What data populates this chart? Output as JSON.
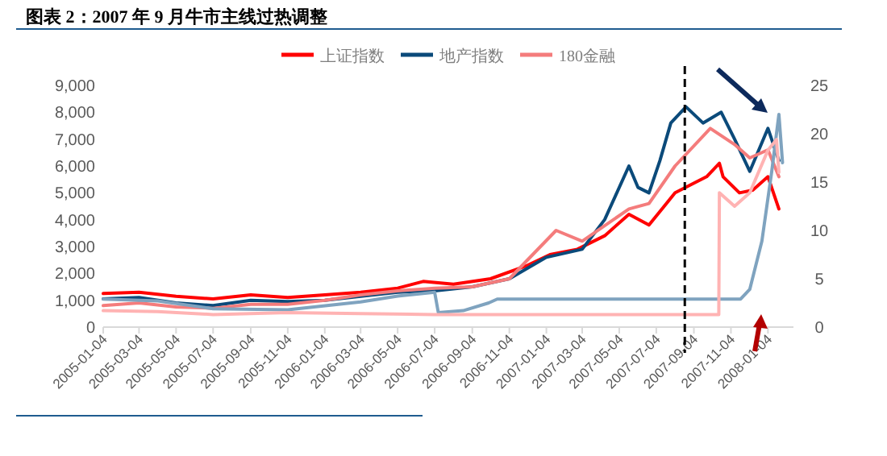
{
  "chart_data": {
    "type": "line",
    "title": "图表 2：2007 年 9 月牛市主线过热调整",
    "xlim": [
      "2005-01-04",
      "2008-02-15"
    ],
    "xticks": [
      "2005-01-04",
      "2005-03-04",
      "2005-05-04",
      "2005-07-04",
      "2005-09-04",
      "2005-11-04",
      "2006-01-04",
      "2006-03-04",
      "2006-05-04",
      "2006-07-04",
      "2006-09-04",
      "2006-11-04",
      "2007-01-04",
      "2007-03-04",
      "2007-05-04",
      "2007-07-04",
      "2007-09-04",
      "2007-11-04",
      "2008-01-04"
    ],
    "ylim": [
      0,
      9000
    ],
    "yticks": [
      0,
      {
        "value": 1000,
        "label": "1,000"
      },
      {
        "value": 2000,
        "label": "2,000"
      },
      {
        "value": 3000,
        "label": "3,000"
      },
      {
        "value": 4000,
        "label": "4,000"
      },
      {
        "value": 5000,
        "label": "5,000"
      },
      {
        "value": 6000,
        "label": "6,000"
      },
      {
        "value": 7000,
        "label": "7,000"
      },
      {
        "value": 8000,
        "label": "8,000"
      },
      {
        "value": 9000,
        "label": "9,000"
      }
    ],
    "y2lim": [
      0,
      25
    ],
    "y2ticks": [
      0,
      5,
      10,
      15,
      20,
      25
    ],
    "legend": "top",
    "grid": false,
    "ref_lines": [
      {
        "axis": "x",
        "value": "2007-08-20",
        "color": "#000000",
        "line_style": "dashed"
      }
    ],
    "series": [
      {
        "name": "上证指数",
        "color": "#ff0000",
        "x": [
          "2005-01-04",
          "2005-03-04",
          "2005-05-04",
          "2005-07-04",
          "2005-09-04",
          "2005-11-04",
          "2006-01-04",
          "2006-03-04",
          "2006-05-04",
          "2006-06-15",
          "2006-08-04",
          "2006-10-04",
          "2006-12-04",
          "2007-01-10",
          "2007-02-24",
          "2007-04-10",
          "2007-05-20",
          "2007-06-22",
          "2007-08-04",
          "2007-09-25",
          "2007-10-16",
          "2007-10-22",
          "2007-11-18",
          "2007-12-10",
          "2008-01-04",
          "2008-01-22"
        ],
        "values": [
          1250,
          1300,
          1150,
          1050,
          1200,
          1100,
          1200,
          1300,
          1450,
          1700,
          1600,
          1800,
          2300,
          2700,
          2900,
          3400,
          4200,
          3800,
          5000,
          5600,
          6100,
          5600,
          5000,
          5100,
          5600,
          4400
        ]
      },
      {
        "name": "地产指数",
        "color": "#0b4a7a",
        "x": [
          "2005-01-04",
          "2005-03-04",
          "2005-05-04",
          "2005-07-04",
          "2005-09-04",
          "2005-11-04",
          "2006-01-04",
          "2006-03-04",
          "2006-05-04",
          "2006-07-04",
          "2006-09-04",
          "2006-11-04",
          "2007-01-04",
          "2007-03-04",
          "2007-04-10",
          "2007-05-20",
          "2007-06-04",
          "2007-06-22",
          "2007-07-10",
          "2007-07-28",
          "2007-08-22",
          "2007-09-19",
          "2007-10-19",
          "2007-11-10",
          "2007-12-05",
          "2008-01-04",
          "2008-01-22"
        ],
        "values": [
          1050,
          1100,
          900,
          800,
          1000,
          950,
          1000,
          1150,
          1300,
          1350,
          1500,
          1800,
          2600,
          2900,
          4000,
          6000,
          5200,
          5000,
          6200,
          7600,
          8200,
          7600,
          8000,
          7000,
          5800,
          7400,
          6200
        ]
      },
      {
        "name": "180金融",
        "color": "#f47c7c",
        "x": [
          "2005-01-04",
          "2005-03-04",
          "2005-05-04",
          "2005-07-04",
          "2005-09-04",
          "2005-11-04",
          "2006-01-04",
          "2006-03-04",
          "2006-05-04",
          "2006-07-04",
          "2006-09-04",
          "2006-11-04",
          "2007-01-20",
          "2007-03-04",
          "2007-05-20",
          "2007-06-22",
          "2007-08-04",
          "2007-10-01",
          "2007-11-10",
          "2007-12-05",
          "2008-01-04",
          "2008-01-22"
        ],
        "values": [
          800,
          900,
          750,
          700,
          850,
          850,
          1000,
          1200,
          1350,
          1450,
          1500,
          1800,
          3600,
          3200,
          4400,
          4600,
          6000,
          7400,
          6800,
          6300,
          6600,
          5600
        ]
      },
      {
        "color": "#7fa3bf",
        "axis": "y2",
        "x": [
          "2005-01-04",
          "2005-04-04",
          "2005-07-04",
          "2005-11-04",
          "2006-03-04",
          "2006-05-04",
          "2006-07-04",
          "2006-07-10",
          "2006-08-20",
          "2006-10-01",
          "2006-10-15",
          "2007-11-20",
          "2007-12-05",
          "2007-12-25",
          "2008-01-10",
          "2008-01-22",
          "2008-01-28"
        ],
        "values": [
          2.9,
          2.7,
          1.9,
          1.8,
          2.6,
          3.2,
          3.6,
          1.5,
          1.7,
          2.5,
          2.9,
          2.9,
          3.9,
          8.9,
          16,
          22,
          17
        ]
      },
      {
        "color": "#ffb3b3",
        "axis": "y2",
        "x": [
          "2005-01-04",
          "2005-04-04",
          "2005-07-04",
          "2005-11-04",
          "2006-03-04",
          "2006-07-04",
          "2006-09-04",
          "2007-10-15",
          "2007-10-16",
          "2007-11-10",
          "2007-12-05",
          "2008-01-04",
          "2008-01-18",
          "2008-01-22"
        ],
        "values": [
          1.7,
          1.6,
          1.3,
          1.5,
          1.4,
          1.3,
          1.3,
          1.3,
          13.9,
          12.5,
          13.9,
          18.3,
          19.4,
          16
        ]
      }
    ]
  }
}
